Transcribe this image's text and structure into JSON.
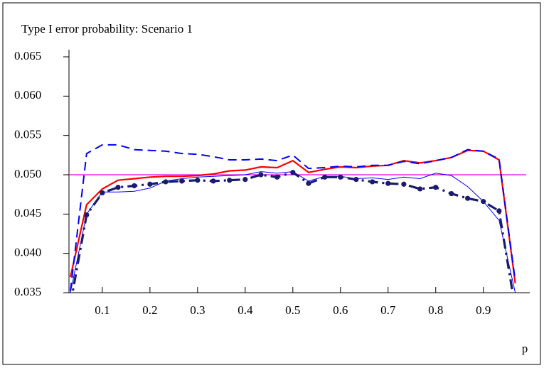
{
  "chart_data": {
    "type": "line",
    "title": "Type I error probability: Scenario 1",
    "xlabel": "p",
    "x": [
      0.033,
      0.067,
      0.1,
      0.133,
      0.167,
      0.2,
      0.233,
      0.267,
      0.3,
      0.333,
      0.367,
      0.4,
      0.433,
      0.467,
      0.5,
      0.533,
      0.567,
      0.6,
      0.633,
      0.667,
      0.7,
      0.733,
      0.767,
      0.8,
      0.833,
      0.867,
      0.9,
      0.933,
      0.967
    ],
    "series": [
      {
        "color": "#ff0000",
        "style": "solid",
        "width": 2.2,
        "markers": false,
        "values": [
          0.037,
          0.0462,
          0.0482,
          0.0493,
          0.0495,
          0.0497,
          0.0498,
          0.0498,
          0.0499,
          0.0501,
          0.0505,
          0.0506,
          0.051,
          0.0509,
          0.0518,
          0.0503,
          0.0507,
          0.051,
          0.0509,
          0.0511,
          0.0512,
          0.0518,
          0.0515,
          0.0518,
          0.0522,
          0.0531,
          0.053,
          0.0519,
          0.0362
        ]
      },
      {
        "color": "#0000ff",
        "style": "dash",
        "width": 2,
        "markers": false,
        "values": [
          0.0352,
          0.0527,
          0.0538,
          0.0538,
          0.0532,
          0.0531,
          0.053,
          0.0527,
          0.0526,
          0.0523,
          0.0519,
          0.0519,
          0.052,
          0.0518,
          0.0525,
          0.0508,
          0.0509,
          0.0511,
          0.051,
          0.0512,
          0.0512,
          0.0517,
          0.0514,
          0.0518,
          0.0522,
          0.0532,
          0.053,
          0.052,
          0.0365
        ]
      },
      {
        "color": "#0000ff",
        "style": "solid",
        "width": 1,
        "markers": false,
        "values": [
          0.035,
          0.045,
          0.0478,
          0.0478,
          0.0479,
          0.0483,
          0.0492,
          0.0495,
          0.0497,
          0.0498,
          0.0499,
          0.05,
          0.0504,
          0.0502,
          0.0504,
          0.0492,
          0.0498,
          0.0498,
          0.0495,
          0.0496,
          0.0494,
          0.0497,
          0.0495,
          0.0502,
          0.0499,
          0.0485,
          0.0466,
          0.0442,
          0.035
        ]
      },
      {
        "color": "#1a1a6e",
        "style": "dashdot",
        "width": 3.2,
        "markers": true,
        "values": [
          0.0335,
          0.0449,
          0.0477,
          0.0484,
          0.0486,
          0.0488,
          0.0491,
          0.0492,
          0.0493,
          0.0492,
          0.0493,
          0.0494,
          0.05,
          0.0497,
          0.0503,
          0.0489,
          0.0497,
          0.0497,
          0.0494,
          0.0491,
          0.0489,
          0.0488,
          0.0482,
          0.0484,
          0.0476,
          0.047,
          0.0466,
          0.0454,
          0.033
        ]
      }
    ],
    "reference_line": {
      "value": 0.05,
      "color": "#e000e0"
    },
    "xlim": [
      0.03,
      0.99
    ],
    "xticks": [
      0.1,
      0.2,
      0.3,
      0.4,
      0.5,
      0.6,
      0.7,
      0.8,
      0.9
    ],
    "ylim": [
      0.035,
      0.065
    ],
    "yticks": [
      0.035,
      {
        "value": 0.04,
        "label": "0.040"
      },
      0.045,
      {
        "value": 0.05,
        "label": "0.050"
      },
      0.055,
      {
        "value": 0.06,
        "label": "0.060"
      },
      0.065
    ]
  }
}
